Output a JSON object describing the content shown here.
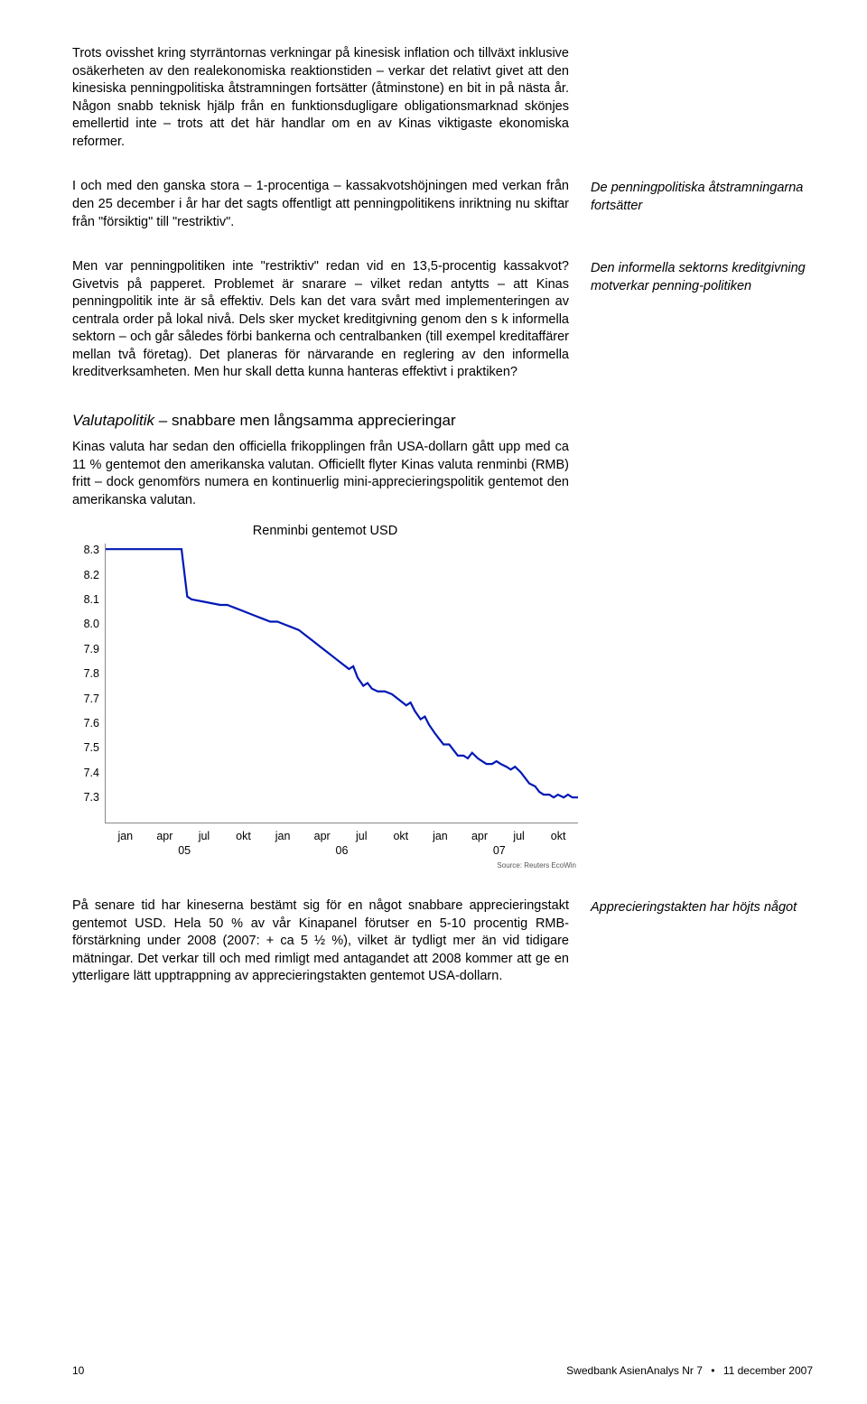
{
  "paragraphs": {
    "p1": "Trots ovisshet kring styrräntornas verkningar på kinesisk inflation och tillväxt inklusive osäkerheten av den realekonomiska reaktionstiden – verkar det relativt givet att den kinesiska penningpolitiska åtstramningen fortsätter (åtminstone) en bit in på nästa år. Någon snabb teknisk hjälp från en funktionsdugligare obligationsmarknad skönjes emellertid inte – trots att det här handlar om en av Kinas viktigaste ekonomiska reformer.",
    "p2": "I och med den ganska stora – 1-procentiga – kassakvotshöjningen med verkan från den 25 december i år har det sagts offentligt att penningpolitikens inriktning nu skiftar från \"försiktig\" till \"restriktiv\".",
    "p3": "Men var penningpolitiken inte \"restriktiv\" redan vid en 13,5-procentig kassakvot? Givetvis på papperet. Problemet är snarare – vilket redan antytts – att Kinas penningpolitik inte är så effektiv. Dels kan det vara svårt med implementeringen av centrala order på lokal nivå. Dels sker mycket kreditgivning genom den s k informella sektorn – och går således förbi bankerna och centralbanken (till exempel kreditaffärer mellan två företag). Det planeras för närvarande en reglering av den informella kreditverksamheten. Men hur skall detta kunna hanteras effektivt i praktiken?",
    "p4": "Kinas valuta har sedan den officiella frikopplingen från USA-dollarn gått upp med ca 11 % gentemot den amerikanska valutan. Officiellt flyter Kinas valuta renminbi (RMB) fritt – dock genomförs numera en kontinuerlig mini-apprecieringspolitik gentemot den amerikanska valutan.",
    "p5": "På senare tid har kineserna bestämt sig för en något snabbare apprecieringstakt gentemot USD. Hela 50 % av vår Kinapanel förutser en 5-10 procentig RMB-förstärkning under 2008 (2007: + ca 5 ½ %), vilket är tydligt mer än vid tidigare mätningar. Det verkar till och med rimligt med antagandet att 2008 kommer att ge en ytterligare lätt upptrappning av apprecieringstakten gentemot USA-dollarn."
  },
  "sidenotes": {
    "s1": "De penningpolitiska åtstramningarna fortsätter",
    "s2": "Den informella sektorns kreditgivning motverkar penning-politiken",
    "s3": "Apprecieringstakten har höjts något"
  },
  "section": {
    "ital": "Valutapolitik",
    "rest": " – snabbare men långsamma apprecieringar"
  },
  "chart": {
    "title": "Renminbi gentemot USD",
    "ylabels": [
      "8.3",
      "8.2",
      "8.1",
      "8.0",
      "7.9",
      "7.8",
      "7.7",
      "7.6",
      "7.5",
      "7.4",
      "7.3"
    ],
    "ylim": [
      7.3,
      8.3
    ],
    "xlabels": [
      "jan",
      "apr",
      "jul",
      "okt",
      "jan",
      "apr",
      "jul",
      "okt",
      "jan",
      "apr",
      "jul",
      "okt"
    ],
    "xyears": [
      "05",
      "06",
      "07"
    ],
    "line_color": "#0018b5",
    "line_width": 2.2,
    "border_color": "#888888",
    "background": "#ffffff",
    "source": "Source: Reuters EcoWin",
    "series": [
      [
        0.0,
        8.28
      ],
      [
        4.5,
        8.28
      ],
      [
        5.3,
        8.28
      ],
      [
        5.7,
        8.11
      ],
      [
        6.0,
        8.1
      ],
      [
        7.0,
        8.09
      ],
      [
        8.0,
        8.08
      ],
      [
        8.5,
        8.08
      ],
      [
        9.0,
        8.07
      ],
      [
        9.5,
        8.06
      ],
      [
        10.0,
        8.05
      ],
      [
        10.5,
        8.04
      ],
      [
        11.0,
        8.03
      ],
      [
        11.5,
        8.02
      ],
      [
        12.0,
        8.02
      ],
      [
        12.5,
        8.01
      ],
      [
        13.0,
        8.0
      ],
      [
        13.5,
        7.99
      ],
      [
        14.0,
        7.97
      ],
      [
        14.5,
        7.95
      ],
      [
        15.0,
        7.93
      ],
      [
        15.5,
        7.91
      ],
      [
        16.0,
        7.89
      ],
      [
        16.5,
        7.87
      ],
      [
        17.0,
        7.85
      ],
      [
        17.3,
        7.86
      ],
      [
        17.6,
        7.82
      ],
      [
        18.0,
        7.79
      ],
      [
        18.3,
        7.8
      ],
      [
        18.6,
        7.78
      ],
      [
        19.0,
        7.77
      ],
      [
        19.5,
        7.77
      ],
      [
        20.0,
        7.76
      ],
      [
        20.5,
        7.74
      ],
      [
        21.0,
        7.72
      ],
      [
        21.3,
        7.73
      ],
      [
        21.6,
        7.7
      ],
      [
        22.0,
        7.67
      ],
      [
        22.3,
        7.68
      ],
      [
        22.6,
        7.65
      ],
      [
        23.0,
        7.62
      ],
      [
        23.3,
        7.6
      ],
      [
        23.6,
        7.58
      ],
      [
        24.0,
        7.58
      ],
      [
        24.3,
        7.56
      ],
      [
        24.6,
        7.54
      ],
      [
        25.0,
        7.54
      ],
      [
        25.3,
        7.53
      ],
      [
        25.6,
        7.55
      ],
      [
        26.0,
        7.53
      ],
      [
        26.3,
        7.52
      ],
      [
        26.6,
        7.51
      ],
      [
        27.0,
        7.51
      ],
      [
        27.3,
        7.52
      ],
      [
        27.6,
        7.51
      ],
      [
        28.0,
        7.5
      ],
      [
        28.3,
        7.49
      ],
      [
        28.6,
        7.5
      ],
      [
        29.0,
        7.48
      ],
      [
        29.3,
        7.46
      ],
      [
        29.6,
        7.44
      ],
      [
        30.0,
        7.43
      ],
      [
        30.3,
        7.41
      ],
      [
        30.6,
        7.4
      ],
      [
        31.0,
        7.4
      ],
      [
        31.3,
        7.39
      ],
      [
        31.6,
        7.4
      ],
      [
        32.0,
        7.39
      ],
      [
        32.3,
        7.4
      ],
      [
        32.6,
        7.39
      ],
      [
        33.0,
        7.39
      ]
    ],
    "xlim": [
      0,
      33
    ]
  },
  "footer": {
    "page": "10",
    "pub": "Swedbank AsienAnalys Nr 7",
    "date": "11 december 2007"
  }
}
